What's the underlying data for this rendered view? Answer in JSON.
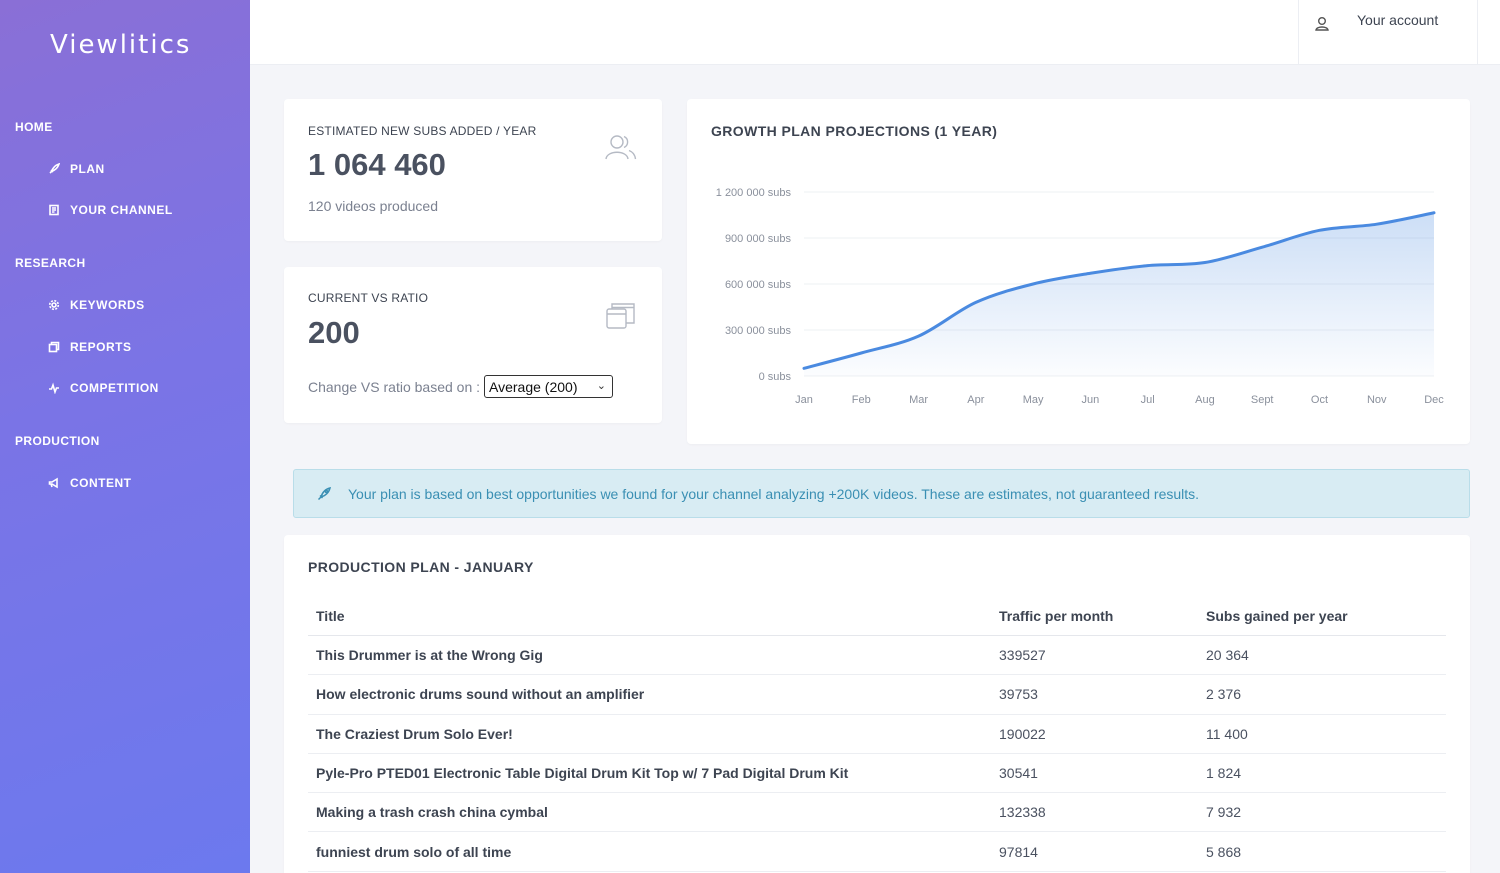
{
  "app": {
    "brand": "Viewlitics"
  },
  "sidebar": {
    "sections": [
      {
        "label": "HOME"
      },
      {
        "label": "RESEARCH"
      },
      {
        "label": "PRODUCTION"
      }
    ],
    "items": [
      {
        "label": "PLAN",
        "icon": "rocket-icon"
      },
      {
        "label": "YOUR CHANNEL",
        "icon": "document-icon"
      },
      {
        "label": "KEYWORDS",
        "icon": "gear-icon"
      },
      {
        "label": "REPORTS",
        "icon": "copy-icon"
      },
      {
        "label": "COMPETITION",
        "icon": "pulse-icon"
      },
      {
        "label": "CONTENT",
        "icon": "megaphone-icon"
      }
    ]
  },
  "header": {
    "account_label": "Your account"
  },
  "stats": {
    "subs": {
      "label": "ESTIMATED NEW SUBS ADDED / YEAR",
      "value": "1 064 460",
      "sub": "120 videos produced"
    },
    "ratio": {
      "label": "CURRENT VS RATIO",
      "value": "200",
      "select_label": "Change VS ratio based on :",
      "select_value": "Average (200)"
    }
  },
  "chart_card": {
    "title": "GROWTH PLAN PROJECTIONS (1 YEAR)"
  },
  "chart_data": {
    "type": "area",
    "title": "GROWTH PLAN PROJECTIONS (1 YEAR)",
    "x": [
      "Jan",
      "Feb",
      "Mar",
      "Apr",
      "May",
      "Jun",
      "Jul",
      "Aug",
      "Sept",
      "Oct",
      "Nov",
      "Dec"
    ],
    "y_ticks": [
      "0 subs",
      "300 000 subs",
      "600 000 subs",
      "900 000 subs",
      "1 200 000 subs"
    ],
    "ylim": [
      0,
      1200000
    ],
    "series": [
      {
        "values": [
          50000,
          150000,
          260000,
          480000,
          600000,
          670000,
          720000,
          740000,
          840000,
          950000,
          990000,
          1064460
        ]
      }
    ],
    "color": "#4a8ae0",
    "grid": true
  },
  "alert": {
    "message": "Your plan is based on best opportunities we found for your channel analyzing +200K videos. These are estimates, not guaranteed results."
  },
  "plan": {
    "title": "PRODUCTION PLAN - JANUARY",
    "columns": [
      "Title",
      "Traffic per month",
      "Subs gained per year"
    ],
    "rows": [
      [
        "This Drummer is at the Wrong Gig",
        "339527",
        "20 364"
      ],
      [
        "How electronic drums sound without an amplifier",
        "39753",
        "2 376"
      ],
      [
        "The Craziest Drum Solo Ever!",
        "190022",
        "11 400"
      ],
      [
        "Pyle-Pro PTED01 Electronic Table Digital Drum Kit Top w/ 7 Pad Digital Drum Kit",
        "30541",
        "1 824"
      ],
      [
        "Making a trash crash china cymbal",
        "132338",
        "7 932"
      ],
      [
        "funniest drum solo of all time",
        "97814",
        "5 868"
      ]
    ]
  }
}
